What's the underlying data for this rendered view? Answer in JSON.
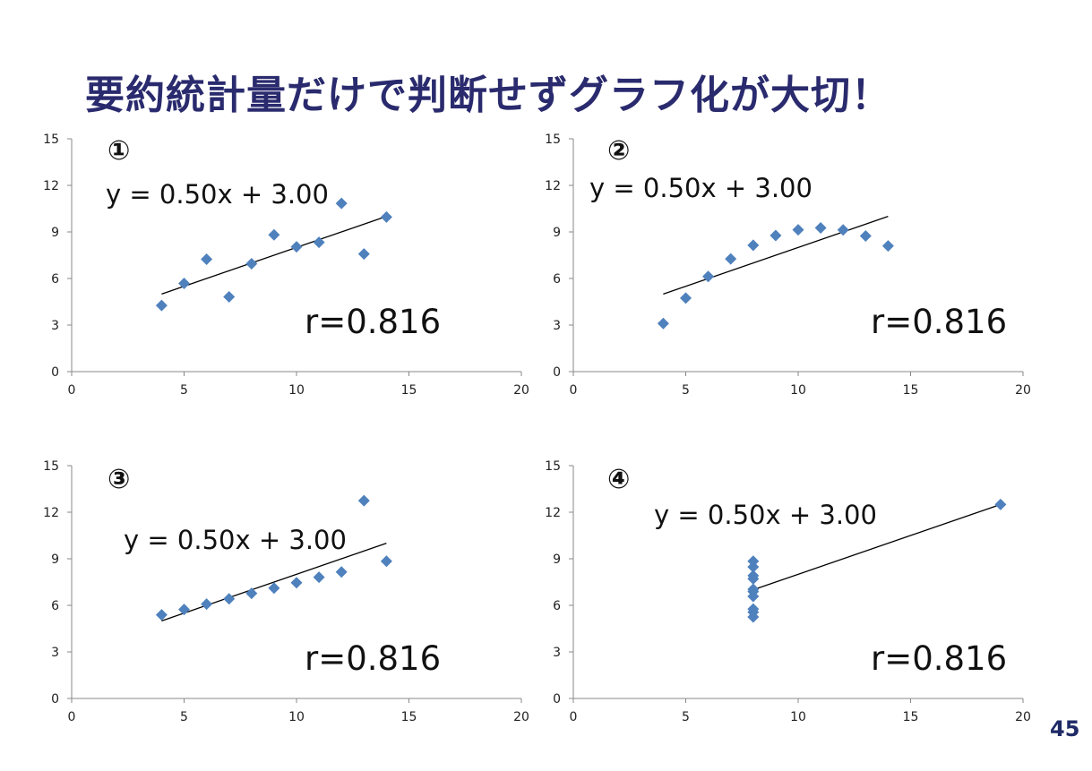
{
  "title": "要約統計量だけで判断せずグラフ化が大切！",
  "page_number": "45",
  "colors": {
    "title": "#2a2a6e",
    "marker": "#4f81bd",
    "axis": "#888888",
    "line": "#000000"
  },
  "chart_data": [
    {
      "type": "scatter",
      "panel_label": "①",
      "x": [
        10,
        8,
        13,
        9,
        11,
        14,
        6,
        4,
        12,
        7,
        5
      ],
      "y": [
        8.04,
        6.95,
        7.58,
        8.81,
        8.33,
        9.96,
        7.24,
        4.26,
        10.84,
        4.82,
        5.68
      ],
      "trendline": {
        "slope": 0.5,
        "intercept": 3.0,
        "x_range": [
          4,
          14
        ]
      },
      "equation": "y = 0.50x + 3.00",
      "r_label": "r=0.816",
      "xlim": [
        0,
        20
      ],
      "ylim": [
        0,
        15
      ],
      "xticks": [
        "0",
        "5",
        "10",
        "15",
        "20"
      ],
      "yticks": [
        "0",
        "3",
        "6",
        "9",
        "12",
        "15"
      ],
      "grid": false
    },
    {
      "type": "scatter",
      "panel_label": "②",
      "x": [
        10,
        8,
        13,
        9,
        11,
        14,
        6,
        4,
        12,
        7,
        5
      ],
      "y": [
        9.14,
        8.14,
        8.74,
        8.77,
        9.26,
        8.1,
        6.13,
        3.1,
        9.13,
        7.26,
        4.74
      ],
      "trendline": {
        "slope": 0.5,
        "intercept": 3.0,
        "x_range": [
          4,
          14
        ]
      },
      "equation": "y = 0.50x + 3.00",
      "r_label": "r=0.816",
      "xlim": [
        0,
        20
      ],
      "ylim": [
        0,
        15
      ],
      "xticks": [
        "0",
        "5",
        "10",
        "15",
        "20"
      ],
      "yticks": [
        "0",
        "3",
        "6",
        "9",
        "12",
        "15"
      ],
      "grid": false
    },
    {
      "type": "scatter",
      "panel_label": "③",
      "x": [
        10,
        8,
        13,
        9,
        11,
        14,
        6,
        4,
        12,
        7,
        5
      ],
      "y": [
        7.46,
        6.77,
        12.74,
        7.11,
        7.81,
        8.84,
        6.08,
        5.39,
        8.15,
        6.42,
        5.73
      ],
      "trendline": {
        "slope": 0.5,
        "intercept": 3.0,
        "x_range": [
          4,
          14
        ]
      },
      "equation": "y = 0.50x + 3.00",
      "r_label": "r=0.816",
      "xlim": [
        0,
        20
      ],
      "ylim": [
        0,
        15
      ],
      "xticks": [
        "0",
        "5",
        "10",
        "15",
        "20"
      ],
      "yticks": [
        "0",
        "3",
        "6",
        "9",
        "12",
        "15"
      ],
      "grid": false
    },
    {
      "type": "scatter",
      "panel_label": "④",
      "x": [
        8,
        8,
        8,
        8,
        8,
        8,
        8,
        19,
        8,
        8,
        8
      ],
      "y": [
        6.58,
        5.76,
        7.71,
        8.84,
        8.47,
        7.04,
        5.25,
        12.5,
        5.56,
        7.91,
        6.89
      ],
      "trendline": {
        "slope": 0.5,
        "intercept": 3.0,
        "x_range": [
          8,
          19
        ]
      },
      "equation": "y = 0.50x + 3.00",
      "r_label": "r=0.816",
      "xlim": [
        0,
        20
      ],
      "ylim": [
        0,
        15
      ],
      "xticks": [
        "0",
        "5",
        "10",
        "15",
        "20"
      ],
      "yticks": [
        "0",
        "3",
        "6",
        "9",
        "12",
        "15"
      ],
      "grid": false
    }
  ]
}
